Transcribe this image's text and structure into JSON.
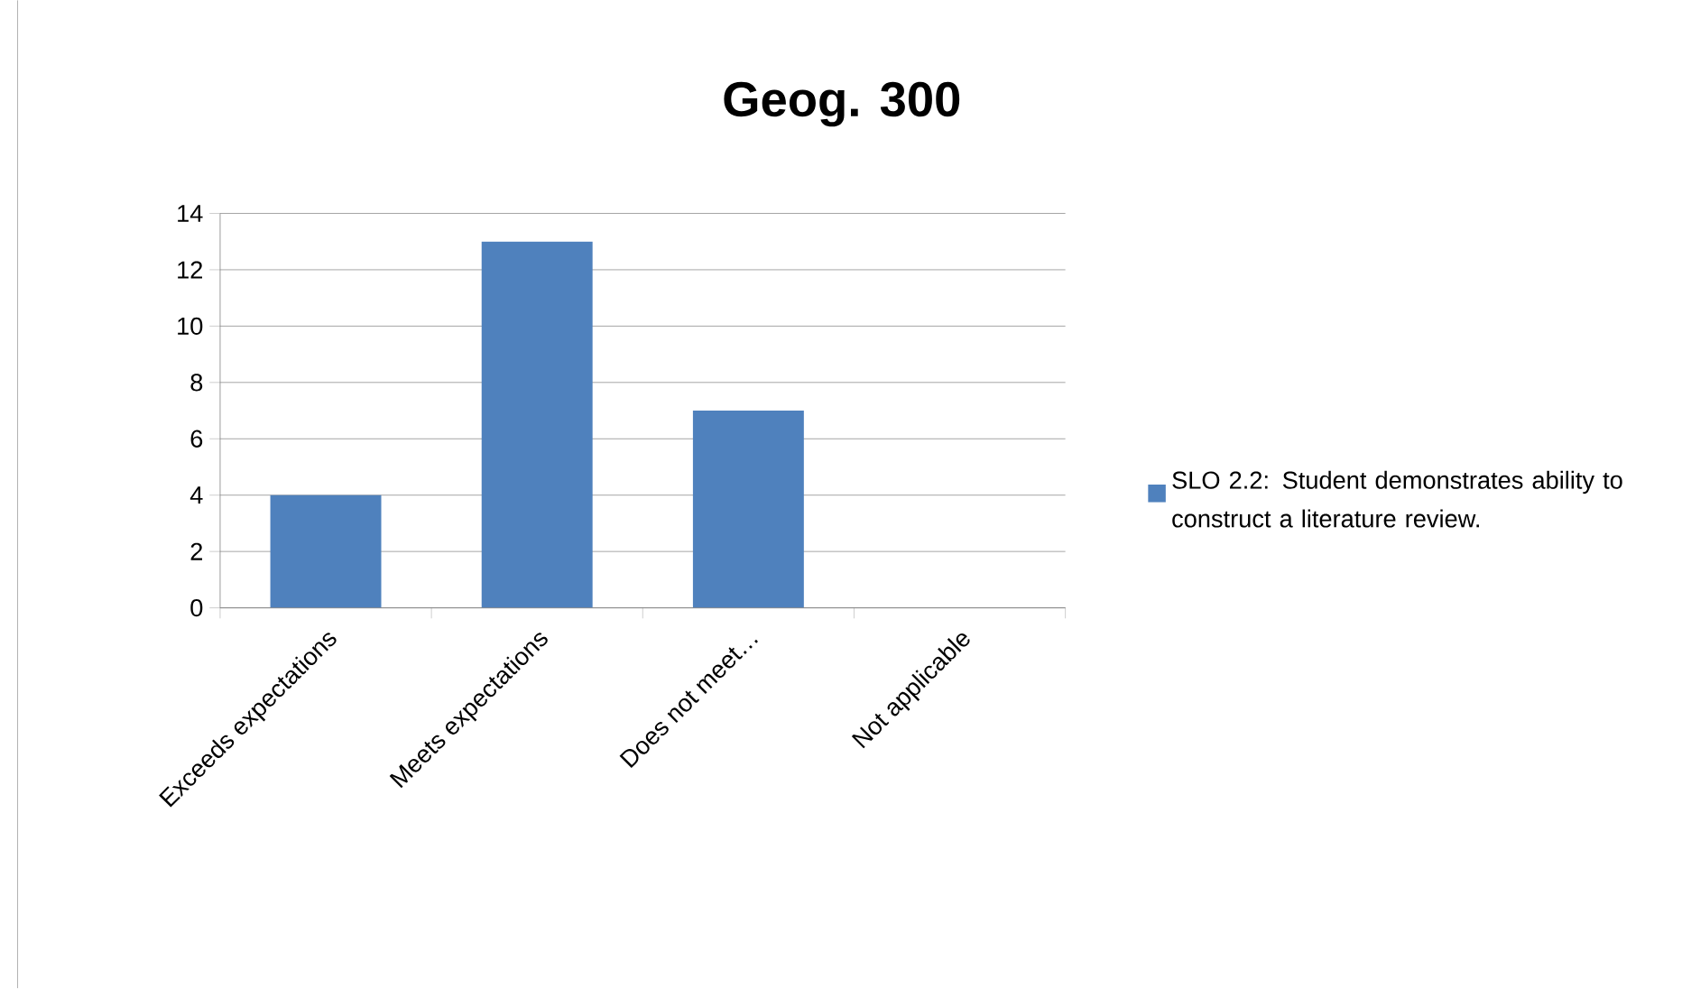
{
  "chart_data": {
    "type": "bar",
    "title": "Geog. 300",
    "categories": [
      "Exceeds expectations",
      "Meets expectations",
      "Does not meet…",
      "Not applicable"
    ],
    "series": [
      {
        "name": "SLO 2.2: Student demonstrates ability to construct a literature review.",
        "color": "#4f81bd",
        "values": [
          4,
          13,
          7,
          0
        ]
      }
    ],
    "ylim": [
      0,
      14
    ],
    "yticks": [
      0,
      2,
      4,
      6,
      8,
      10,
      12,
      14
    ],
    "grid": "y",
    "legend": "right"
  }
}
